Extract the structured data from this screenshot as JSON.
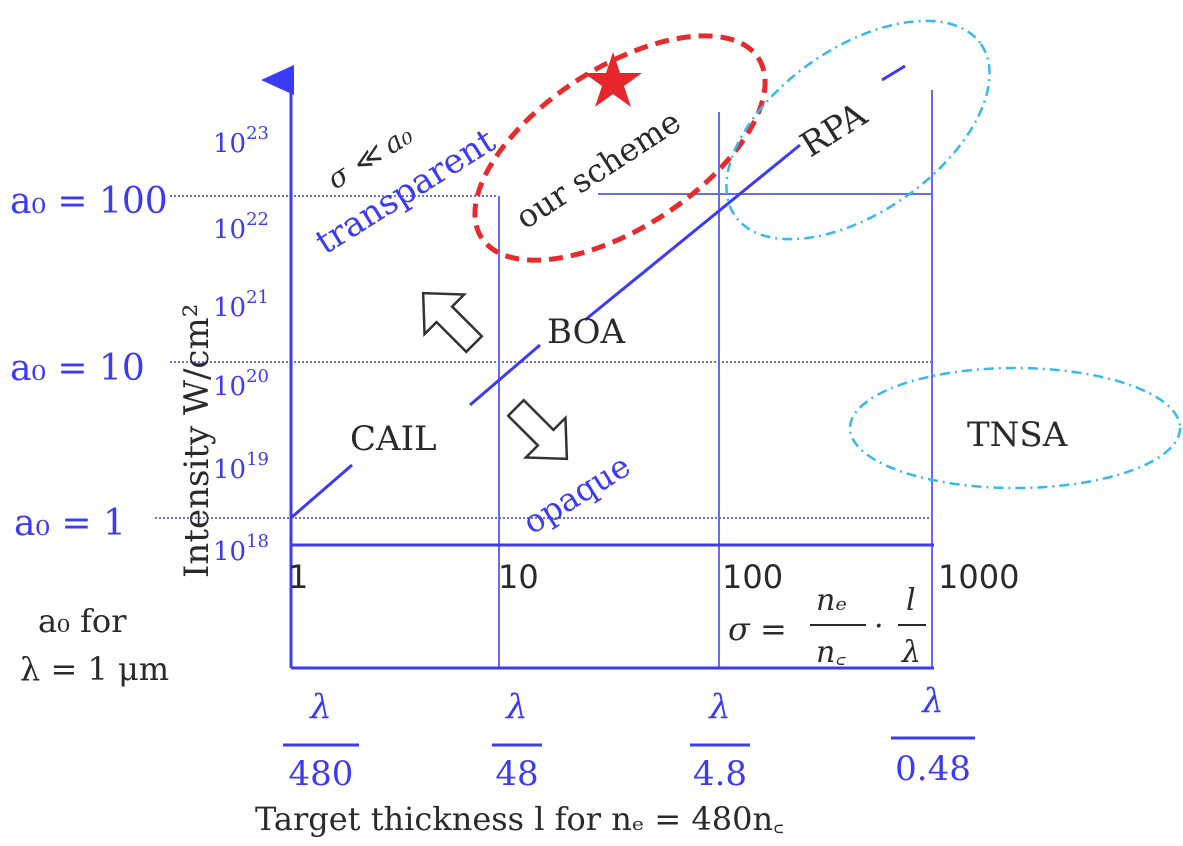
{
  "colors": {
    "axis_blue": "#3b3bf5",
    "grid_blue": "#6a6af0",
    "scheme_red": "#e52b2b",
    "cyan": "#35b9ee",
    "text_black": "#2a2a2a"
  },
  "y_axis": {
    "label": "Intensity  W/cm²",
    "ticks": [
      {
        "base": "10",
        "exp": "18"
      },
      {
        "base": "10",
        "exp": "19"
      },
      {
        "base": "10",
        "exp": "20"
      },
      {
        "base": "10",
        "exp": "21"
      },
      {
        "base": "10",
        "exp": "22"
      },
      {
        "base": "10",
        "exp": "23"
      }
    ],
    "a0_labels": [
      {
        "text": "a₀ = 100"
      },
      {
        "text": "a₀ = 10"
      },
      {
        "text": "a₀ = 1"
      }
    ],
    "a0_note_line1": "a₀  for",
    "a0_note_line2": "λ = 1 μm"
  },
  "x_axis": {
    "ticks": [
      "1",
      "10",
      "100",
      "1000"
    ],
    "sigma_lhs": "σ =",
    "sigma_num1": "nₑ",
    "sigma_den1": "n꜀",
    "sigma_dot": "·",
    "sigma_num2": "l",
    "sigma_den2": "λ",
    "thickness_numerators": [
      "λ",
      "λ",
      "λ",
      "λ"
    ],
    "thickness_denominators": [
      "480",
      "48",
      "4.8",
      "0.48"
    ],
    "label": "Target thickness  l  for  nₑ = 480n꜀"
  },
  "regions": {
    "sigma_note": "σ ≪ a₀",
    "transparent": "transparent",
    "opaque": "opaque",
    "our_scheme": "our scheme",
    "rpa": "RPA",
    "boa": "BOA",
    "cail": "CAIL",
    "tnsa": "TNSA"
  },
  "icons": [
    "star-icon",
    "arrow-up-left-icon",
    "arrow-down-right-icon"
  ]
}
